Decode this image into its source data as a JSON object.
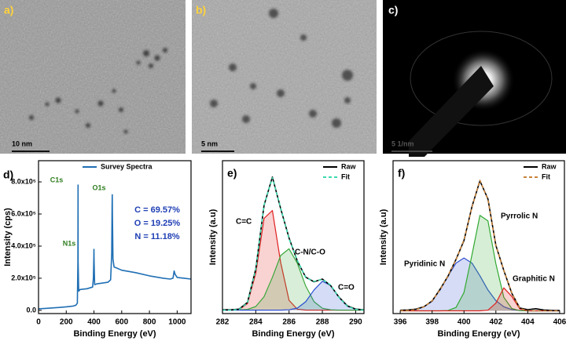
{
  "images": [
    {
      "label": "a)",
      "scale_bar": "10 nm"
    },
    {
      "label": "b)",
      "scale_bar": "5 nm"
    },
    {
      "label": "c)",
      "scale_bar": "5 1/nm"
    }
  ],
  "chart_data": [
    {
      "type": "line",
      "panel_label": "d)",
      "xlabel": "Binding Energy (eV)",
      "ylabel": "Intensity (cps)",
      "xlim": [
        0,
        1100
      ],
      "xticks": [
        0,
        200,
        400,
        600,
        800,
        1000
      ],
      "ylim": [
        -20000,
        932000
      ],
      "yticks": [
        {
          "value": 0,
          "label": "0.0"
        },
        {
          "value": 200000,
          "label": "2.0x10⁵"
        },
        {
          "value": 400000,
          "label": "4.0x10⁵"
        },
        {
          "value": 600000,
          "label": "6.0x10⁵"
        },
        {
          "value": 800000,
          "label": "8.0x10⁵"
        }
      ],
      "x": [
        0,
        50,
        100,
        150,
        200,
        250,
        270,
        280,
        284,
        285,
        286,
        290,
        300,
        350,
        390,
        396,
        399,
        400,
        401,
        405,
        420,
        500,
        520,
        528,
        531,
        532,
        533,
        537,
        545,
        560,
        600,
        700,
        800,
        900,
        950,
        970,
        978,
        985,
        1000,
        1050,
        1100
      ],
      "series": [
        {
          "name": "Survey Spectra",
          "color": "#1f6fb4",
          "values": [
            10000,
            12000,
            15000,
            18000,
            22000,
            27000,
            32000,
            45000,
            300000,
            780000,
            300000,
            120000,
            130000,
            135000,
            145000,
            200000,
            330000,
            380000,
            300000,
            160000,
            165000,
            175000,
            190000,
            350000,
            650000,
            720000,
            600000,
            320000,
            270000,
            265000,
            250000,
            235000,
            215000,
            200000,
            195000,
            200000,
            245000,
            225000,
            205000,
            200000,
            195000
          ]
        }
      ],
      "annotations": [
        {
          "text": "C1s",
          "color": "#2e7d1e"
        },
        {
          "text": "N1s",
          "color": "#2e7d1e"
        },
        {
          "text": "O1s",
          "color": "#2e7d1e"
        },
        {
          "text": "C = 69.57%",
          "color": "#1f3fb4"
        },
        {
          "text": "O = 19.25%",
          "color": "#1f3fb4"
        },
        {
          "text": "N = 11.18%",
          "color": "#1f3fb4"
        }
      ]
    },
    {
      "type": "line",
      "panel_label": "e)",
      "xlabel": "Binding Energy (eV)",
      "ylabel": "Intensity (a.u)",
      "xlim": [
        282,
        290.5
      ],
      "xticks": [
        282,
        284,
        286,
        288,
        290
      ],
      "ylim": [
        -0.02,
        0.87
      ],
      "x": [
        282,
        282.5,
        283,
        283.5,
        284,
        284.5,
        285,
        285.5,
        286,
        286.5,
        287,
        287.5,
        288,
        288.5,
        289,
        289.5,
        290,
        290.5,
        291
      ],
      "series": [
        {
          "name": "C=C",
          "color": "#e02020",
          "fill": true,
          "legend": false,
          "values": [
            0,
            0,
            0.003,
            0.038,
            0.215,
            0.534,
            0.58,
            0.276,
            0.057,
            0.005,
            0,
            0,
            0,
            0,
            0,
            0,
            0,
            0,
            0
          ]
        },
        {
          "name": "C-N/C-O",
          "color": "#3aa83a",
          "fill": true,
          "legend": false,
          "values": [
            0,
            0,
            0.001,
            0.004,
            0.021,
            0.078,
            0.191,
            0.318,
            0.357,
            0.272,
            0.14,
            0.049,
            0.011,
            0.002,
            0,
            0,
            0,
            0,
            0
          ]
        },
        {
          "name": "C=O",
          "color": "#2a4fd0",
          "fill": true,
          "legend": false,
          "values": [
            0,
            0,
            0,
            0,
            0,
            0,
            0,
            0,
            0.002,
            0.012,
            0.049,
            0.118,
            0.168,
            0.144,
            0.074,
            0.023,
            0.004,
            0,
            0
          ]
        },
        {
          "name": "Raw",
          "color": "#000000",
          "values": [
            0.003,
            0.002,
            0.006,
            0.045,
            0.24,
            0.61,
            0.775,
            0.59,
            0.42,
            0.285,
            0.192,
            0.165,
            0.181,
            0.143,
            0.076,
            0.025,
            0.006,
            0.002,
            0.001
          ]
        },
        {
          "name": "Fit",
          "color": "#3dd9b0",
          "dash": true,
          "values": [
            0,
            0,
            0.004,
            0.042,
            0.236,
            0.612,
            0.771,
            0.594,
            0.416,
            0.289,
            0.189,
            0.167,
            0.179,
            0.146,
            0.074,
            0.023,
            0.004,
            0,
            0
          ]
        }
      ]
    },
    {
      "type": "line",
      "panel_label": "f)",
      "xlabel": "Binding Energy (eV)",
      "ylabel": "Intensity (a.u)",
      "xlim": [
        395.55,
        406.3
      ],
      "xticks": [
        396,
        398,
        400,
        402,
        404,
        406
      ],
      "ylim": [
        -0.02,
        1.08
      ],
      "x": [
        396,
        396.5,
        397,
        397.5,
        398,
        398.5,
        399,
        399.5,
        400,
        400.5,
        401,
        401.5,
        402,
        402.5,
        403,
        403.5,
        404,
        404.5,
        405,
        405.5,
        406
      ],
      "series": [
        {
          "name": "Pyridinic N",
          "color": "#3050d0",
          "fill": true,
          "legend": false,
          "values": [
            0.001,
            0.002,
            0.009,
            0.029,
            0.073,
            0.15,
            0.252,
            0.343,
            0.38,
            0.343,
            0.252,
            0.15,
            0.073,
            0.029,
            0.009,
            0.002,
            0,
            0,
            0,
            0,
            0
          ]
        },
        {
          "name": "Pyrrolic N",
          "color": "#30a830",
          "fill": true,
          "legend": false,
          "values": [
            0,
            0,
            0,
            0,
            0,
            0,
            0.002,
            0.024,
            0.131,
            0.403,
            0.687,
            0.647,
            0.338,
            0.097,
            0.016,
            0.001,
            0,
            0,
            0,
            0,
            0
          ]
        },
        {
          "name": "Graphitic N",
          "color": "#e02020",
          "fill": true,
          "legend": false,
          "values": [
            0,
            0,
            0,
            0,
            0,
            0,
            0,
            0,
            0,
            0,
            0,
            0.004,
            0.055,
            0.165,
            0.103,
            0.014,
            0,
            0,
            0,
            0,
            0
          ]
        },
        {
          "name": "Raw",
          "color": "#000000",
          "values": [
            0.004,
            0.006,
            0.012,
            0.03,
            0.07,
            0.155,
            0.25,
            0.37,
            0.505,
            0.75,
            0.935,
            0.805,
            0.47,
            0.29,
            0.125,
            0.02,
            0.008,
            0.015,
            0.006,
            0.003,
            0.002
          ]
        },
        {
          "name": "Fit",
          "color": "#c8843c",
          "dash": true,
          "values": [
            0.001,
            0.002,
            0.009,
            0.029,
            0.073,
            0.15,
            0.254,
            0.367,
            0.511,
            0.746,
            0.939,
            0.801,
            0.466,
            0.291,
            0.128,
            0.017,
            0,
            0,
            0,
            0,
            0
          ]
        }
      ]
    }
  ]
}
